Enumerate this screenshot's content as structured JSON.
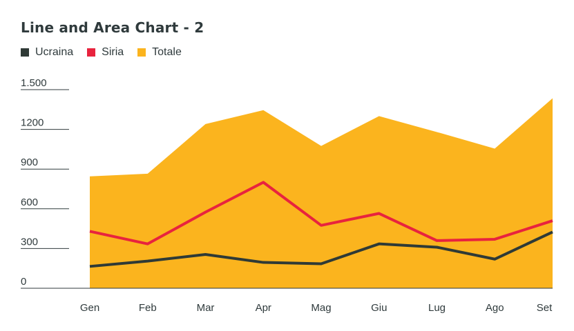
{
  "title": "Line and Area Chart - 2",
  "colors": {
    "Ucraina": "#2f3a36",
    "Siria": "#e8233e",
    "Totale": "#fbb41e",
    "text": "#2f3a3c",
    "grid": "#2f3a3c"
  },
  "chart_data": {
    "type": "area",
    "title": "Line and Area Chart - 2",
    "xlabel": "",
    "ylabel": "",
    "categories": [
      "Gen",
      "Feb",
      "Mar",
      "Apr",
      "Mag",
      "Giu",
      "Lug",
      "Ago",
      "Set"
    ],
    "y_ticks": [
      0,
      300,
      600,
      900,
      1200,
      1500
    ],
    "y_tick_labels": [
      "0",
      "300",
      "600",
      "900",
      "1200",
      "1.500"
    ],
    "ylim": [
      0,
      1500
    ],
    "legend_position": "top-left",
    "grid": false,
    "series": [
      {
        "name": "Ucraina",
        "type": "line",
        "values": [
          165,
          205,
          255,
          195,
          185,
          335,
          310,
          220,
          425
        ]
      },
      {
        "name": "Siria",
        "type": "line",
        "values": [
          430,
          335,
          575,
          800,
          475,
          565,
          360,
          370,
          510
        ]
      },
      {
        "name": "Totale",
        "type": "area",
        "values": [
          845,
          865,
          1240,
          1345,
          1075,
          1300,
          1180,
          1055,
          1435
        ]
      }
    ]
  }
}
